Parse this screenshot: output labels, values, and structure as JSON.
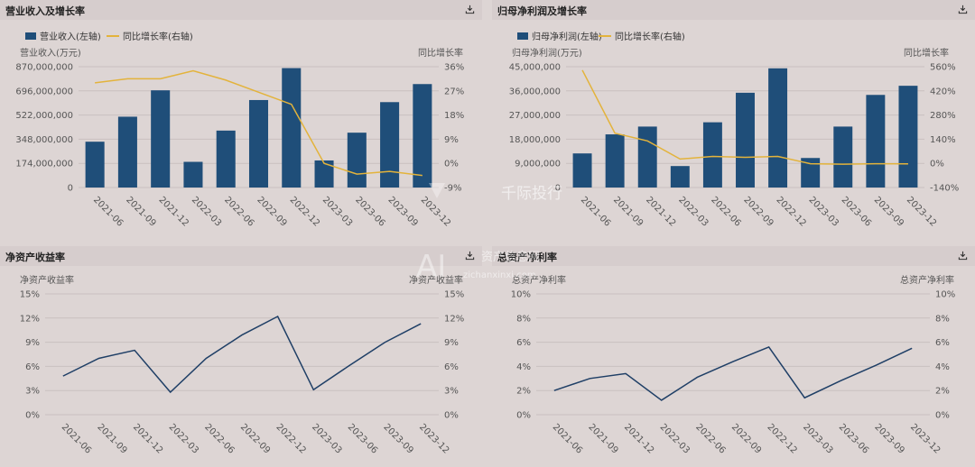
{
  "colors": {
    "bar": "#1f4e79",
    "growth_line": "#e3b33b",
    "ratio_line": "#1f3f66",
    "grid": "#c9c0bf",
    "text": "#555555"
  },
  "panels": [
    {
      "title": "营业收入及增长率",
      "download_icon": "download-icon"
    },
    {
      "title": "归母净利润及增长率",
      "download_icon": "download-icon"
    },
    {
      "title": "净资产收益率",
      "download_icon": "download-icon"
    },
    {
      "title": "总资产净利率",
      "download_icon": "download-icon"
    }
  ],
  "watermark": {
    "text1": "千际投行",
    "text2": "资产信息网",
    "text3": "zichanxinxi.com",
    "logo": "AI"
  },
  "chart_data": [
    {
      "type": "bar",
      "categories": [
        "2021-06",
        "2021-09",
        "2021-12",
        "2022-03",
        "2022-06",
        "2022-09",
        "2022-12",
        "2023-03",
        "2023-06",
        "2023-09",
        "2023-12"
      ],
      "legend": [
        "营业收入(左轴)",
        "同比增长率(右轴)"
      ],
      "ylabel_left": "营业收入(万元)",
      "ylabel_right": "同比增长率",
      "yticks_left": [
        "0",
        "174,000,000",
        "348,000,000",
        "522,000,000",
        "696,000,000",
        "870,000,000"
      ],
      "yticks_right": [
        "-9%",
        "0%",
        "9%",
        "18%",
        "27%",
        "36%"
      ],
      "ylim_left": [
        0,
        870000000
      ],
      "ylim_right": [
        -9,
        36
      ],
      "series": [
        {
          "name": "营业收入(左轴)",
          "kind": "bar",
          "axis": "left",
          "values": [
            330000000,
            510000000,
            700000000,
            185000000,
            410000000,
            630000000,
            860000000,
            195000000,
            395000000,
            615000000,
            745000000
          ]
        },
        {
          "name": "同比增长率(右轴)",
          "kind": "line",
          "axis": "right",
          "values": [
            30,
            31.5,
            31.5,
            34.5,
            31,
            26.5,
            22,
            0,
            -4,
            -3,
            -4.5
          ]
        }
      ]
    },
    {
      "type": "bar",
      "categories": [
        "2021-06",
        "2021-09",
        "2021-12",
        "2022-03",
        "2022-06",
        "2022-09",
        "2022-12",
        "2023-03",
        "2023-06",
        "2023-09",
        "2023-12"
      ],
      "legend": [
        "归母净利润(左轴)",
        "同比增长率(右轴)"
      ],
      "ylabel_left": "归母净利润(万元)",
      "ylabel_right": "同比增长率",
      "yticks_left": [
        "0",
        "9,000,000",
        "18,000,000",
        "27,000,000",
        "36,000,000",
        "45,000,000"
      ],
      "yticks_right": [
        "-140%",
        "0%",
        "140%",
        "280%",
        "420%",
        "560%"
      ],
      "ylim_left": [
        0,
        45000000
      ],
      "ylim_right": [
        -140,
        560
      ],
      "series": [
        {
          "name": "归母净利润(左轴)",
          "kind": "bar",
          "axis": "left",
          "values": [
            12700000,
            19800000,
            22700000,
            8000000,
            24300000,
            35300000,
            44400000,
            11000000,
            22700000,
            34500000,
            37900000
          ]
        },
        {
          "name": "同比增长率(右轴)",
          "kind": "line",
          "axis": "right",
          "values": [
            540,
            175,
            130,
            25,
            40,
            35,
            40,
            -2,
            -5,
            -2,
            -3
          ]
        }
      ]
    },
    {
      "type": "line",
      "categories": [
        "2021-06",
        "2021-09",
        "2021-12",
        "2022-03",
        "2022-06",
        "2022-09",
        "2022-12",
        "2023-03",
        "2023-06",
        "2023-09",
        "2023-12"
      ],
      "ylabel_left": "净资产收益率",
      "ylabel_right": "净资产收益率",
      "yticks_left": [
        "0%",
        "3%",
        "6%",
        "9%",
        "12%",
        "15%"
      ],
      "yticks_right": [
        "0%",
        "3%",
        "6%",
        "9%",
        "12%",
        "15%"
      ],
      "ylim_left": [
        0,
        15
      ],
      "series": [
        {
          "kind": "line",
          "axis": "left",
          "values": [
            4.8,
            7.0,
            8.0,
            2.8,
            7.0,
            9.9,
            12.2,
            3.1,
            6.1,
            9.0,
            11.3
          ]
        }
      ]
    },
    {
      "type": "line",
      "categories": [
        "2021-06",
        "2021-09",
        "2021-12",
        "2022-03",
        "2022-06",
        "2022-09",
        "2022-12",
        "2023-03",
        "2023-06",
        "2023-09",
        "2023-12"
      ],
      "ylabel_left": "总资产净利率",
      "ylabel_right": "总资产净利率",
      "yticks_left": [
        "0%",
        "2%",
        "4%",
        "6%",
        "8%",
        "10%"
      ],
      "yticks_right": [
        "0%",
        "2%",
        "4%",
        "6%",
        "8%",
        "10%"
      ],
      "ylim_left": [
        0,
        10
      ],
      "series": [
        {
          "kind": "line",
          "axis": "left",
          "values": [
            2.0,
            3.0,
            3.4,
            1.2,
            3.1,
            4.4,
            5.6,
            1.4,
            2.8,
            4.1,
            5.5
          ]
        }
      ]
    }
  ]
}
